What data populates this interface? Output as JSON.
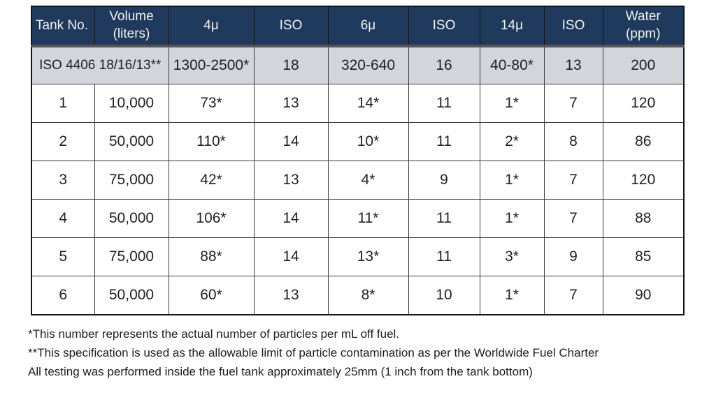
{
  "colors": {
    "header_bg": "#1f3a5c",
    "header_text": "#f2f2f2",
    "spec_row_bg": "#d4d4dc",
    "grid_border": "#3a3a3e",
    "outer_border": "#151515",
    "body_text": "#222222"
  },
  "table": {
    "headers": [
      "Tank No.",
      "Volume\n(liters)",
      "4μ",
      "ISO",
      "6μ",
      "ISO",
      "14μ",
      "ISO",
      "Water\n(ppm)"
    ],
    "spec_row": {
      "label": "ISO 4406 18/16/13**",
      "values": [
        "1300-2500*",
        "18",
        "320-640",
        "16",
        "40-80*",
        "13",
        "200"
      ]
    },
    "rows": [
      [
        "1",
        "10,000",
        "73*",
        "13",
        "14*",
        "11",
        "1*",
        "7",
        "120"
      ],
      [
        "2",
        "50,000",
        "110*",
        "14",
        "10*",
        "11",
        "2*",
        "8",
        "86"
      ],
      [
        "3",
        "75,000",
        "42*",
        "13",
        "4*",
        "9",
        "1*",
        "7",
        "120"
      ],
      [
        "4",
        "50,000",
        "106*",
        "14",
        "11*",
        "11",
        "1*",
        "7",
        "88"
      ],
      [
        "5",
        "75,000",
        "88*",
        "14",
        "13*",
        "11",
        "3*",
        "9",
        "85"
      ],
      [
        "6",
        "50,000",
        "60*",
        "13",
        "8*",
        "10",
        "1*",
        "7",
        "90"
      ]
    ]
  },
  "footnotes": [
    "*This number represents the actual number of particles per mL off fuel.",
    "**This specification is used as the allowable limit of particle contamination as per the Worldwide Fuel Charter",
    "All testing was performed inside the fuel tank approximately 25mm (1 inch from the tank bottom)"
  ]
}
